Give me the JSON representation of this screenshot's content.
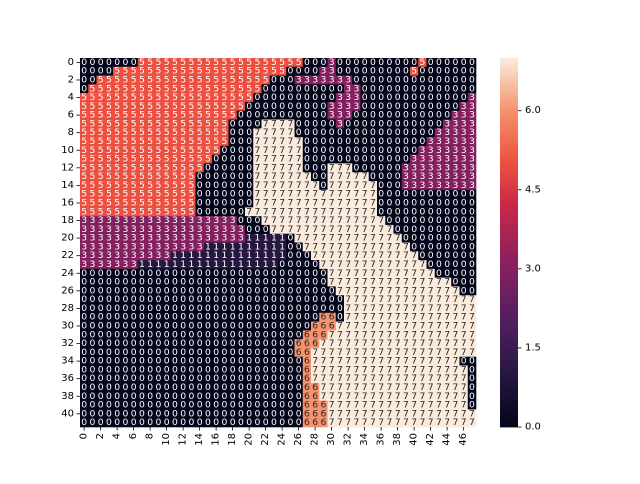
{
  "chart_data": {
    "type": "heatmap",
    "title": "",
    "xlabel": "",
    "ylabel": "",
    "rows": 42,
    "cols": 48,
    "x_tick_labels": [
      "0",
      "2",
      "4",
      "6",
      "8",
      "10",
      "12",
      "14",
      "16",
      "18",
      "20",
      "22",
      "24",
      "26",
      "28",
      "30",
      "32",
      "34",
      "36",
      "38",
      "40",
      "42",
      "44",
      "46"
    ],
    "y_tick_labels": [
      "0",
      "2",
      "4",
      "6",
      "8",
      "10",
      "12",
      "14",
      "16",
      "18",
      "20",
      "22",
      "24",
      "26",
      "28",
      "30",
      "32",
      "34",
      "36",
      "38",
      "40"
    ],
    "annotate_cells": true,
    "values": [
      "000000055555555555555555555000300000000005000000",
      "000055555555555555555555500003300000000050000000",
      "005555555555555555555550003333333000000000000000",
      "055555555555555555555500000000003300000000000000",
      "555555555555555555555000000000033300000000000003",
      "555555555555555555550000000000333300000000000033",
      "555555555555555555500000000000333000000000000333",
      "555555555555555555000077770000030000000000003333",
      "555555555555555555000777770000000000000000033333",
      "555555555555555555000777777000000000000000333333",
      "555555555555555550000777777000000000000003333333",
      "555555555555555500000777777000000000000033333333",
      "555555555555555000000777777000777000000333333333",
      "555555555555550000000777777700777770000333333333",
      "555555555555550000000777777770777777000333333333",
      "555555555555550000000777777777777777000000000000",
      "555555555555550000000777777777777777000000000000",
      "555555555555550000007777777777777777000000000000",
      "333333333333333333300077777777777777700000000000",
      "333333333333333333330007777777777777770000000000",
      "333333333333333333331111107777777777777000000000",
      "333333333333333111111111100777777777777700000000",
      "333333333331111111111111100077777777777770000000",
      "333333311111111111111111000007777777777777000000",
      "000000000000000000000000000000777777777777700000",
      "000000000000000000000000000000777777777777777000",
      "000000000000000000000000000000077777777777777700",
      "000000000000000000000000000000007777777777777777",
      "000000000000000000000000000000007777777777777777",
      "000000000000000000000000000006607777777777777777",
      "000000000000000000000000000066677777777777777777",
      "000000000000000000000000000666777777777777777777",
      "000000000000000000000000006667777777777777777777",
      "000000000000000000000000006677777777777777777777",
      "000000000000000000000000000677777777777777777700",
      "000000000000000000000000000677777777777777777770",
      "000000000000000000000000000677777777777777777770",
      "000000000000000000000000000667777777777777777770",
      "000000000000000000000000000667777777777777777770",
      "000000000000000000000000000666777777777777777770",
      "000000000000000000000000000666777777777777777777",
      "000000000000000000000000000666777777777777777777"
    ],
    "vmin": 0,
    "vmax": 7,
    "colorbar": {
      "ticks": [
        0.0,
        1.5,
        3.0,
        4.5,
        6.0
      ],
      "tick_labels": [
        "0.0",
        "1.5",
        "3.0",
        "4.5",
        "6.0"
      ],
      "colormap": "rocket"
    },
    "grid": false
  }
}
